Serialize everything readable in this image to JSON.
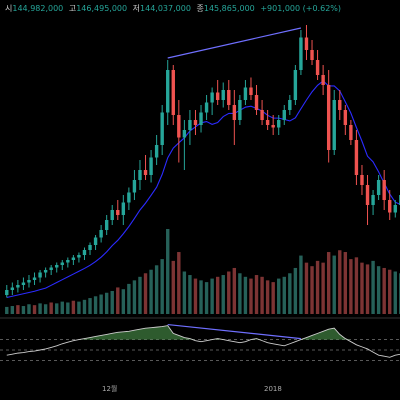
{
  "ohlc": {
    "open_label": "시",
    "open": "144,982,000",
    "high_label": "고",
    "high": "146,495,000",
    "low_label": "저",
    "low": "144,037,000",
    "close_label": "종",
    "close": "145,865,000",
    "change": "+901,000 (+0.62%)"
  },
  "colors": {
    "background": "#000000",
    "up": "#26a69a",
    "down": "#ef5350",
    "ma": "#2b2bff",
    "trendline": "#6f6fff",
    "oscillator": "#cccccc",
    "oscillator_fill": "#3e7a3e"
  },
  "chart_data": {
    "type": "candlestick",
    "title": "",
    "x_tick_labels": [
      "12월",
      "2018"
    ],
    "grid": false,
    "candles": [
      {
        "o": 2,
        "h": 6,
        "l": 1,
        "c": 4
      },
      {
        "o": 4,
        "h": 7,
        "l": 2,
        "c": 5
      },
      {
        "o": 5,
        "h": 8,
        "l": 3,
        "c": 6
      },
      {
        "o": 6,
        "h": 9,
        "l": 4,
        "c": 7
      },
      {
        "o": 7,
        "h": 10,
        "l": 5,
        "c": 8
      },
      {
        "o": 8,
        "h": 11,
        "l": 6,
        "c": 9
      },
      {
        "o": 9,
        "h": 12,
        "l": 7,
        "c": 11
      },
      {
        "o": 11,
        "h": 13,
        "l": 9,
        "c": 12
      },
      {
        "o": 12,
        "h": 14,
        "l": 10,
        "c": 13
      },
      {
        "o": 13,
        "h": 15,
        "l": 11,
        "c": 14
      },
      {
        "o": 14,
        "h": 16,
        "l": 12,
        "c": 15
      },
      {
        "o": 15,
        "h": 17,
        "l": 13,
        "c": 16
      },
      {
        "o": 16,
        "h": 18,
        "l": 14,
        "c": 17
      },
      {
        "o": 17,
        "h": 19,
        "l": 15,
        "c": 18
      },
      {
        "o": 18,
        "h": 21,
        "l": 16,
        "c": 20
      },
      {
        "o": 20,
        "h": 23,
        "l": 18,
        "c": 22
      },
      {
        "o": 22,
        "h": 26,
        "l": 20,
        "c": 25
      },
      {
        "o": 25,
        "h": 30,
        "l": 23,
        "c": 28
      },
      {
        "o": 28,
        "h": 34,
        "l": 26,
        "c": 32
      },
      {
        "o": 32,
        "h": 38,
        "l": 30,
        "c": 36
      },
      {
        "o": 36,
        "h": 40,
        "l": 32,
        "c": 34
      },
      {
        "o": 34,
        "h": 42,
        "l": 30,
        "c": 39
      },
      {
        "o": 39,
        "h": 45,
        "l": 36,
        "c": 43
      },
      {
        "o": 43,
        "h": 52,
        "l": 40,
        "c": 48
      },
      {
        "o": 48,
        "h": 56,
        "l": 44,
        "c": 52
      },
      {
        "o": 52,
        "h": 58,
        "l": 48,
        "c": 50
      },
      {
        "o": 50,
        "h": 60,
        "l": 47,
        "c": 57
      },
      {
        "o": 57,
        "h": 66,
        "l": 54,
        "c": 62
      },
      {
        "o": 62,
        "h": 78,
        "l": 58,
        "c": 75
      },
      {
        "o": 75,
        "h": 96,
        "l": 70,
        "c": 92
      },
      {
        "o": 92,
        "h": 94,
        "l": 70,
        "c": 74
      },
      {
        "o": 74,
        "h": 80,
        "l": 55,
        "c": 65
      },
      {
        "o": 65,
        "h": 72,
        "l": 52,
        "c": 68
      },
      {
        "o": 68,
        "h": 76,
        "l": 62,
        "c": 72
      },
      {
        "o": 72,
        "h": 76,
        "l": 66,
        "c": 70
      },
      {
        "o": 70,
        "h": 78,
        "l": 67,
        "c": 75
      },
      {
        "o": 75,
        "h": 82,
        "l": 72,
        "c": 79
      },
      {
        "o": 79,
        "h": 85,
        "l": 74,
        "c": 83
      },
      {
        "o": 83,
        "h": 88,
        "l": 78,
        "c": 80
      },
      {
        "o": 80,
        "h": 87,
        "l": 77,
        "c": 84
      },
      {
        "o": 84,
        "h": 88,
        "l": 76,
        "c": 78
      },
      {
        "o": 78,
        "h": 84,
        "l": 62,
        "c": 72
      },
      {
        "o": 72,
        "h": 82,
        "l": 70,
        "c": 80
      },
      {
        "o": 80,
        "h": 88,
        "l": 78,
        "c": 85
      },
      {
        "o": 85,
        "h": 89,
        "l": 80,
        "c": 82
      },
      {
        "o": 82,
        "h": 86,
        "l": 74,
        "c": 76
      },
      {
        "o": 76,
        "h": 80,
        "l": 70,
        "c": 72
      },
      {
        "o": 72,
        "h": 76,
        "l": 68,
        "c": 70
      },
      {
        "o": 70,
        "h": 74,
        "l": 66,
        "c": 69
      },
      {
        "o": 69,
        "h": 74,
        "l": 66,
        "c": 72
      },
      {
        "o": 72,
        "h": 78,
        "l": 70,
        "c": 76
      },
      {
        "o": 76,
        "h": 82,
        "l": 74,
        "c": 80
      },
      {
        "o": 80,
        "h": 94,
        "l": 78,
        "c": 92
      },
      {
        "o": 92,
        "h": 108,
        "l": 90,
        "c": 105
      },
      {
        "o": 105,
        "h": 110,
        "l": 96,
        "c": 100
      },
      {
        "o": 100,
        "h": 104,
        "l": 94,
        "c": 96
      },
      {
        "o": 96,
        "h": 100,
        "l": 88,
        "c": 90
      },
      {
        "o": 90,
        "h": 94,
        "l": 82,
        "c": 86
      },
      {
        "o": 86,
        "h": 92,
        "l": 55,
        "c": 60
      },
      {
        "o": 60,
        "h": 84,
        "l": 58,
        "c": 80
      },
      {
        "o": 80,
        "h": 84,
        "l": 72,
        "c": 76
      },
      {
        "o": 76,
        "h": 78,
        "l": 66,
        "c": 70
      },
      {
        "o": 70,
        "h": 72,
        "l": 62,
        "c": 64
      },
      {
        "o": 64,
        "h": 68,
        "l": 46,
        "c": 50
      },
      {
        "o": 50,
        "h": 54,
        "l": 42,
        "c": 46
      },
      {
        "o": 46,
        "h": 50,
        "l": 30,
        "c": 38
      },
      {
        "o": 38,
        "h": 44,
        "l": 34,
        "c": 42
      },
      {
        "o": 42,
        "h": 50,
        "l": 40,
        "c": 48
      },
      {
        "o": 48,
        "h": 52,
        "l": 36,
        "c": 40
      },
      {
        "o": 40,
        "h": 44,
        "l": 32,
        "c": 35
      },
      {
        "o": 35,
        "h": 40,
        "l": 33,
        "c": 38
      },
      {
        "o": 38,
        "h": 44,
        "l": 36,
        "c": 42
      }
    ],
    "volume": [
      8,
      9,
      10,
      9,
      11,
      10,
      12,
      11,
      13,
      12,
      14,
      13,
      15,
      14,
      16,
      18,
      20,
      22,
      24,
      26,
      30,
      28,
      34,
      38,
      42,
      46,
      50,
      55,
      62,
      96,
      60,
      70,
      48,
      44,
      40,
      38,
      36,
      40,
      42,
      44,
      48,
      52,
      46,
      42,
      40,
      44,
      42,
      38,
      36,
      40,
      42,
      46,
      52,
      66,
      58,
      54,
      60,
      58,
      70,
      66,
      72,
      70,
      62,
      64,
      58,
      56,
      60,
      54,
      52,
      50,
      48,
      46
    ],
    "volume_down_flags": [
      0,
      0,
      1,
      0,
      0,
      1,
      0,
      0,
      1,
      0,
      0,
      0,
      1,
      0,
      0,
      0,
      0,
      0,
      0,
      0,
      1,
      0,
      0,
      0,
      0,
      1,
      0,
      0,
      0,
      0,
      1,
      1,
      0,
      0,
      1,
      0,
      0,
      0,
      1,
      0,
      1,
      1,
      0,
      0,
      1,
      1,
      1,
      1,
      1,
      0,
      0,
      0,
      0,
      0,
      1,
      1,
      1,
      1,
      1,
      0,
      1,
      1,
      1,
      1,
      1,
      1,
      0,
      0,
      1,
      1,
      0,
      0
    ],
    "oscillator": [
      40,
      42,
      44,
      45,
      47,
      48,
      50,
      52,
      55,
      58,
      62,
      65,
      68,
      70,
      72,
      74,
      76,
      78,
      80,
      82,
      84,
      85,
      86,
      88,
      90,
      92,
      93,
      94,
      95,
      97,
      82,
      78,
      74,
      72,
      68,
      66,
      68,
      70,
      72,
      70,
      68,
      66,
      64,
      66,
      70,
      72,
      68,
      64,
      62,
      60,
      58,
      62,
      66,
      70,
      74,
      78,
      82,
      86,
      90,
      92,
      80,
      72,
      66,
      60,
      56,
      52,
      46,
      40,
      38,
      36,
      40,
      42
    ],
    "oscillator_levels": [
      70,
      50,
      30
    ]
  }
}
